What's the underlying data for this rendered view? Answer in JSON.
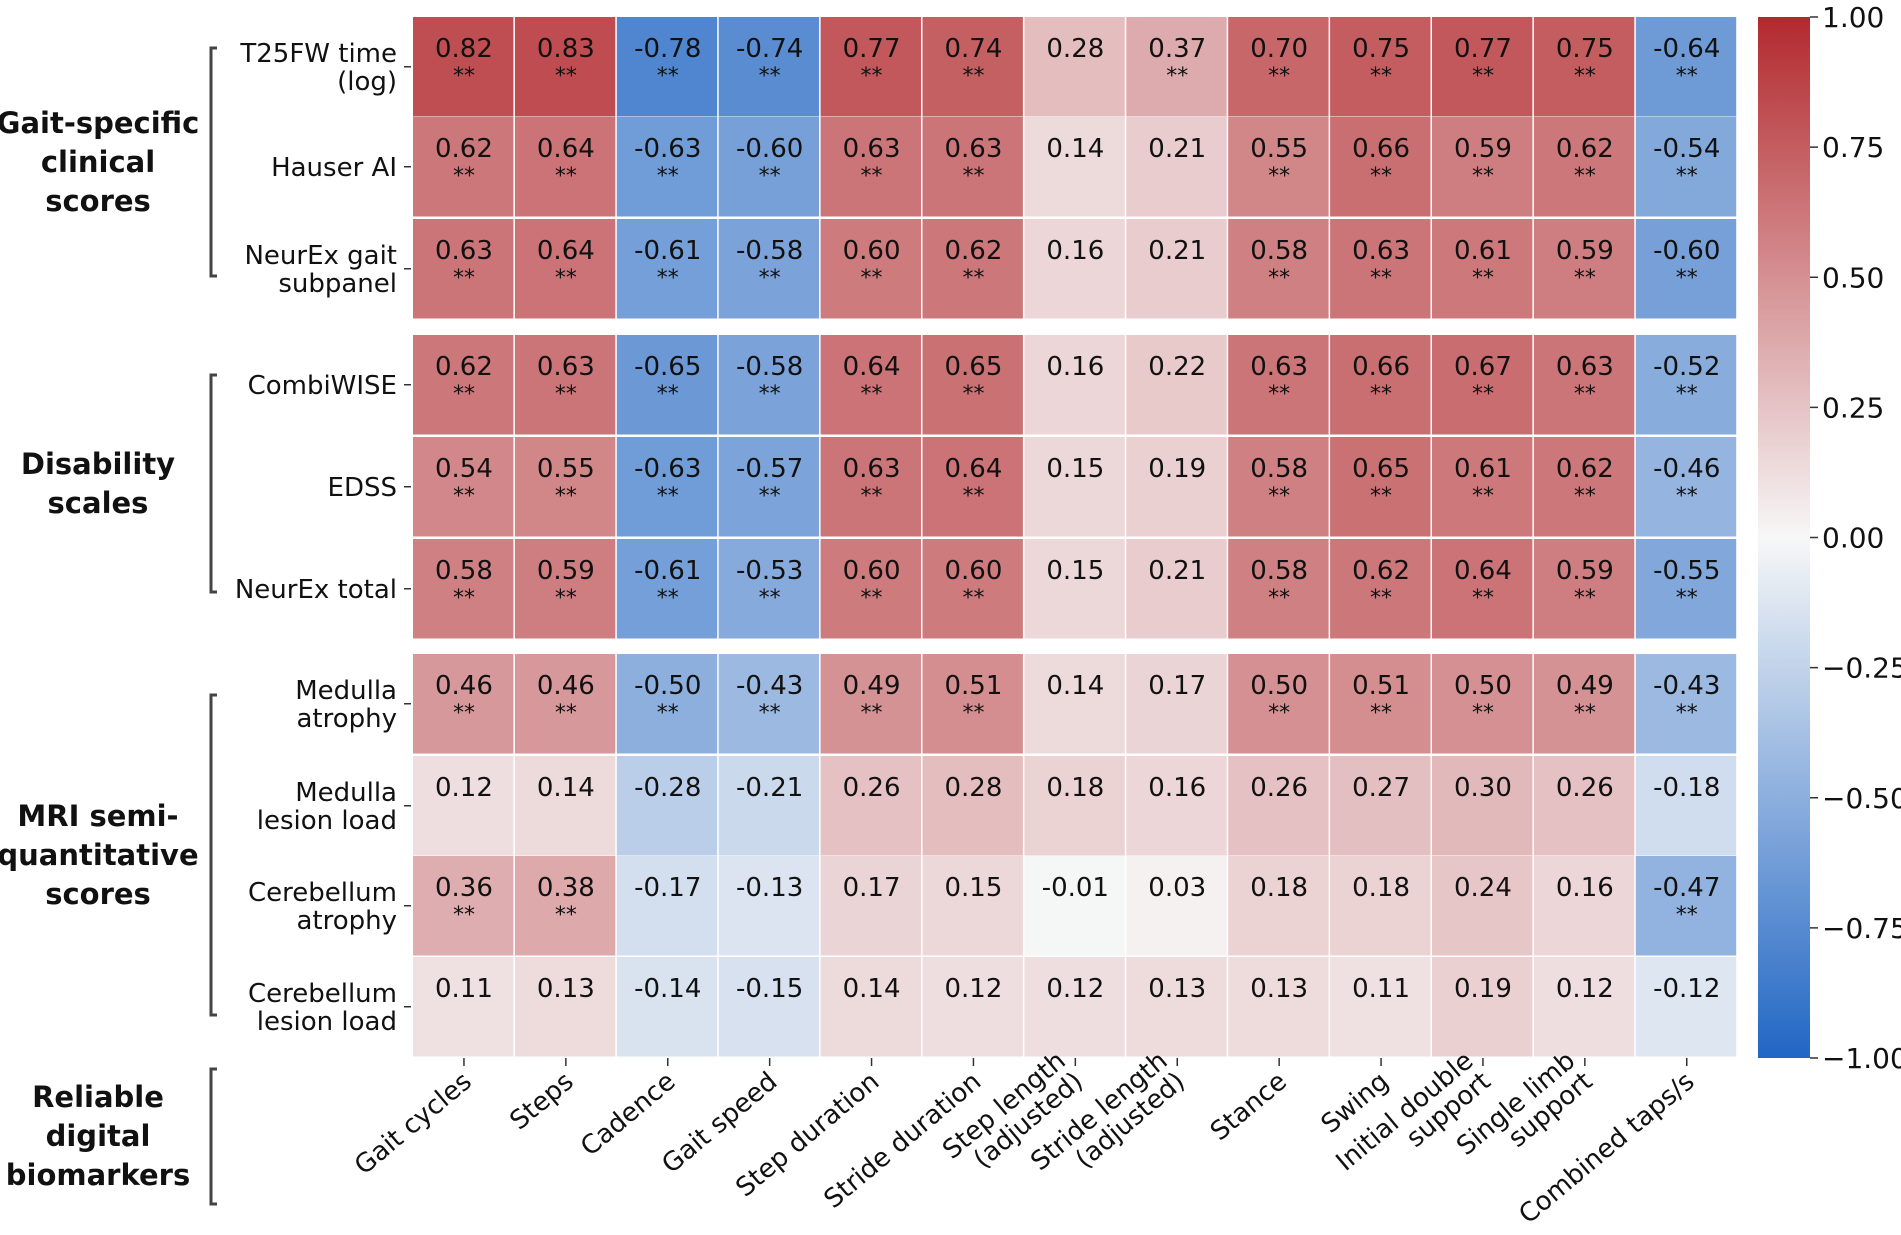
{
  "chart_data": {
    "type": "heatmap",
    "title": "",
    "columns": [
      "Gait cycles",
      "Steps",
      "Cadence",
      "Gait speed",
      "Step duration",
      "Stride duration",
      "Step length\n(adjusted)",
      "Stride length\n(adjusted)",
      "Stance",
      "Swing",
      "Initial double\nsupport",
      "Single limb\nsupport",
      "Combined taps/s"
    ],
    "row_groups": [
      {
        "name": "Gait-specific\nclinical\nscores",
        "rows": [
          0,
          1,
          2
        ]
      },
      {
        "name": "Disability\nscales",
        "rows": [
          3,
          4,
          5
        ]
      },
      {
        "name": "MRI semi-\nquantitative\nscores",
        "rows": [
          6,
          7,
          8,
          9
        ]
      }
    ],
    "column_group": {
      "name": "Reliable\ndigital\nbiomarkers"
    },
    "rows": [
      {
        "label": "T25FW time\n(log)",
        "values": [
          0.82,
          0.83,
          -0.78,
          -0.74,
          0.77,
          0.74,
          0.28,
          0.37,
          0.7,
          0.75,
          0.77,
          0.75,
          -0.64
        ],
        "sig": [
          "**",
          "**",
          "**",
          "**",
          "**",
          "**",
          "",
          "**",
          "**",
          "**",
          "**",
          "**",
          "**"
        ]
      },
      {
        "label": "Hauser AI",
        "values": [
          0.62,
          0.64,
          -0.63,
          -0.6,
          0.63,
          0.63,
          0.14,
          0.21,
          0.55,
          0.66,
          0.59,
          0.62,
          -0.54
        ],
        "sig": [
          "**",
          "**",
          "**",
          "**",
          "**",
          "**",
          "",
          "",
          "**",
          "**",
          "**",
          "**",
          "**"
        ]
      },
      {
        "label": "NeurEx gait\nsubpanel",
        "values": [
          0.63,
          0.64,
          -0.61,
          -0.58,
          0.6,
          0.62,
          0.16,
          0.21,
          0.58,
          0.63,
          0.61,
          0.59,
          -0.6
        ],
        "sig": [
          "**",
          "**",
          "**",
          "**",
          "**",
          "**",
          "",
          "",
          "**",
          "**",
          "**",
          "**",
          "**"
        ]
      },
      {
        "label": "CombiWISE",
        "values": [
          0.62,
          0.63,
          -0.65,
          -0.58,
          0.64,
          0.65,
          0.16,
          0.22,
          0.63,
          0.66,
          0.67,
          0.63,
          -0.52
        ],
        "sig": [
          "**",
          "**",
          "**",
          "**",
          "**",
          "**",
          "",
          "",
          "**",
          "**",
          "**",
          "**",
          "**"
        ]
      },
      {
        "label": "EDSS",
        "values": [
          0.54,
          0.55,
          -0.63,
          -0.57,
          0.63,
          0.64,
          0.15,
          0.19,
          0.58,
          0.65,
          0.61,
          0.62,
          -0.46
        ],
        "sig": [
          "**",
          "**",
          "**",
          "**",
          "**",
          "**",
          "",
          "",
          "**",
          "**",
          "**",
          "**",
          "**"
        ]
      },
      {
        "label": "NeurEx total",
        "values": [
          0.58,
          0.59,
          -0.61,
          -0.53,
          0.6,
          0.6,
          0.15,
          0.21,
          0.58,
          0.62,
          0.64,
          0.59,
          -0.55
        ],
        "sig": [
          "**",
          "**",
          "**",
          "**",
          "**",
          "**",
          "",
          "",
          "**",
          "**",
          "**",
          "**",
          "**"
        ]
      },
      {
        "label": "Medulla\natrophy",
        "values": [
          0.46,
          0.46,
          -0.5,
          -0.43,
          0.49,
          0.51,
          0.14,
          0.17,
          0.5,
          0.51,
          0.5,
          0.49,
          -0.43
        ],
        "sig": [
          "**",
          "**",
          "**",
          "**",
          "**",
          "**",
          "",
          "",
          "**",
          "**",
          "**",
          "**",
          "**"
        ]
      },
      {
        "label": "Medulla\nlesion load",
        "values": [
          0.12,
          0.14,
          -0.28,
          -0.21,
          0.26,
          0.28,
          0.18,
          0.16,
          0.26,
          0.27,
          0.3,
          0.26,
          -0.18
        ],
        "sig": [
          "",
          "",
          "",
          "",
          "",
          "",
          "",
          "",
          "",
          "",
          "",
          "",
          ""
        ]
      },
      {
        "label": "Cerebellum\natrophy",
        "values": [
          0.36,
          0.38,
          -0.17,
          -0.13,
          0.17,
          0.15,
          -0.01,
          0.03,
          0.18,
          0.18,
          0.24,
          0.16,
          -0.47
        ],
        "sig": [
          "**",
          "**",
          "",
          "",
          "",
          "",
          "",
          "",
          "",
          "",
          "",
          "",
          "**"
        ]
      },
      {
        "label": "Cerebellum\nlesion load",
        "values": [
          0.11,
          0.13,
          -0.14,
          -0.15,
          0.14,
          0.12,
          0.12,
          0.13,
          0.13,
          0.11,
          0.19,
          0.12,
          -0.12
        ],
        "sig": [
          "",
          "",
          "",
          "",
          "",
          "",
          "",
          "",
          "",
          "",
          "",
          "",
          ""
        ]
      }
    ],
    "colorbar": {
      "range": [
        -1.0,
        1.0
      ],
      "ticks": [
        1.0,
        0.75,
        0.5,
        0.25,
        0.0,
        -0.25,
        -0.5,
        -0.75,
        -1.0
      ],
      "tick_labels": [
        "1.00",
        "0.75",
        "0.50",
        "0.25",
        "0.00",
        "−0.25",
        "−0.50",
        "−0.75",
        "−1.00"
      ],
      "colormap": "coolwarm-like (blue negative, white zero, red positive)",
      "low_color": "#2166c4",
      "mid_color": "#f7f7f7",
      "high_color": "#b2292e"
    }
  }
}
